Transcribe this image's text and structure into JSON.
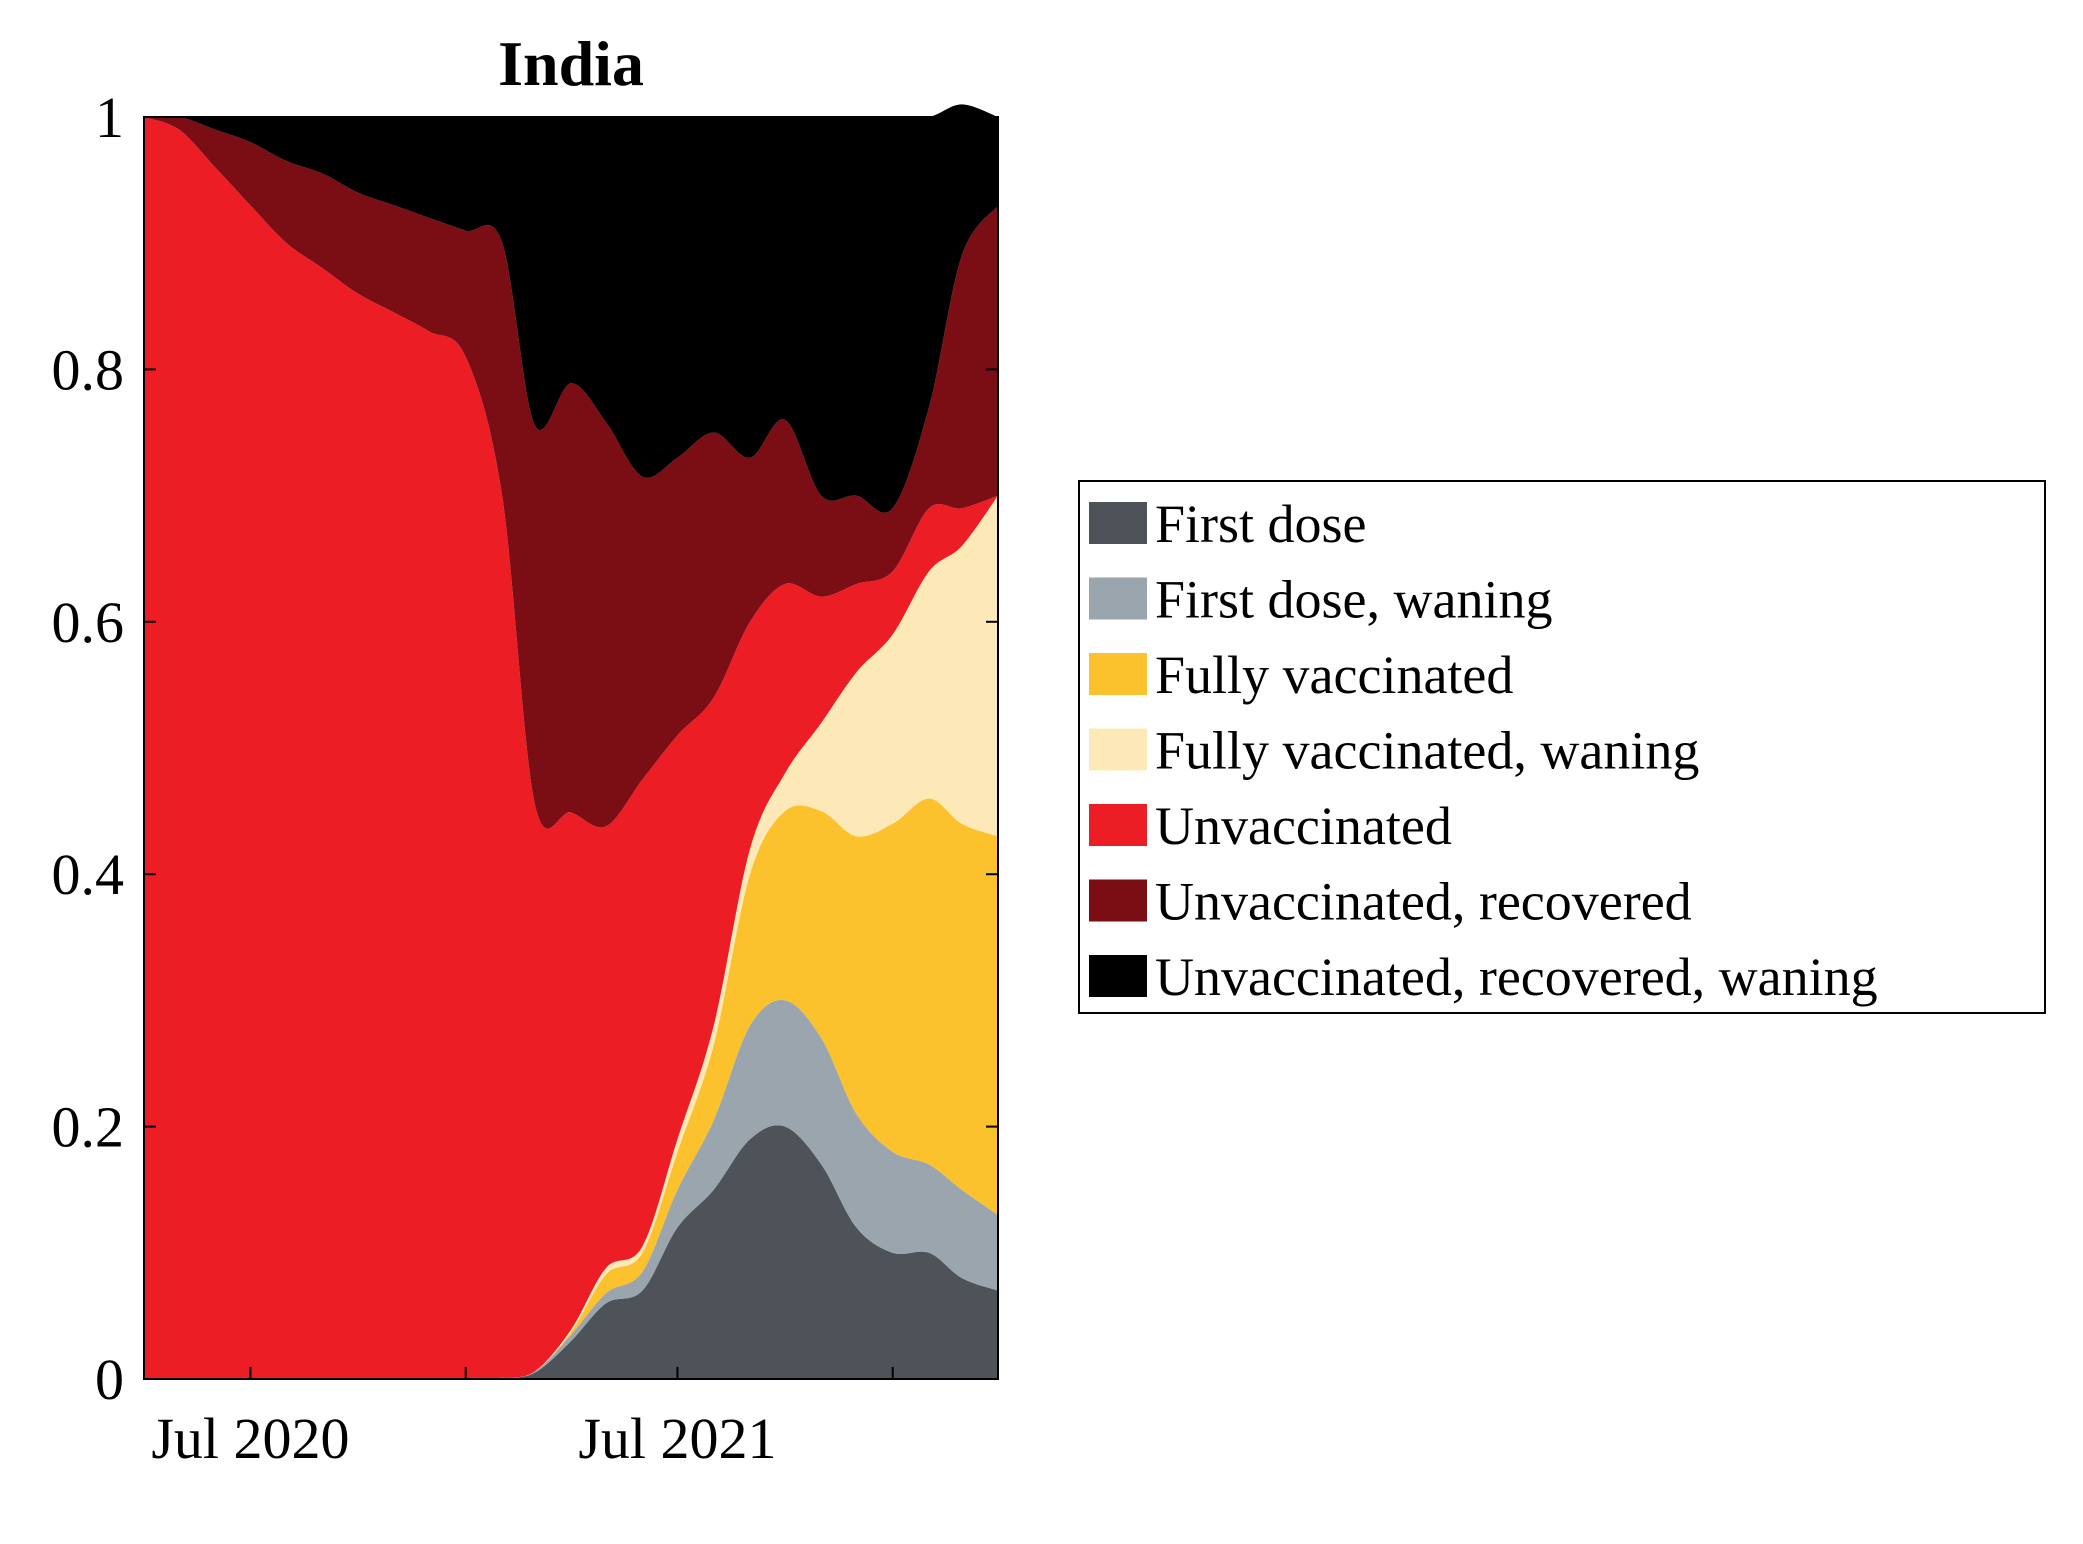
{
  "chart_data": {
    "type": "area",
    "stacked": true,
    "normalized": true,
    "title": "India",
    "xlabel": "",
    "ylabel": "",
    "xlim": [
      "2020-04-01",
      "2022-04-01"
    ],
    "ylim": [
      0,
      1
    ],
    "y_ticks": [
      0,
      0.2,
      0.4,
      0.6,
      0.8,
      1
    ],
    "y_tick_labels": [
      "0",
      "0.2",
      "0.4",
      "0.6",
      "0.8",
      "1"
    ],
    "x_ticks": [
      "2020-07-01",
      "2021-07-01"
    ],
    "x_tick_labels": [
      "Jul 2020",
      "Jul 2021"
    ],
    "grid": false,
    "legend_position": "outside-right",
    "x": [
      "2020-04-01",
      "2020-05-01",
      "2020-06-01",
      "2020-07-01",
      "2020-08-01",
      "2020-09-01",
      "2020-10-01",
      "2020-11-01",
      "2020-12-01",
      "2021-01-01",
      "2021-02-01",
      "2021-03-01",
      "2021-04-01",
      "2021-05-01",
      "2021-06-01",
      "2021-07-01",
      "2021-08-01",
      "2021-09-01",
      "2021-10-01",
      "2021-11-01",
      "2021-12-01",
      "2022-01-01",
      "2022-02-01",
      "2022-03-01",
      "2022-04-01"
    ],
    "series": [
      {
        "name": "First dose",
        "color": "#4e535a",
        "values": [
          0,
          0,
          0,
          0,
          0,
          0,
          0,
          0,
          0,
          0,
          0.001,
          0.005,
          0.03,
          0.06,
          0.07,
          0.12,
          0.15,
          0.19,
          0.2,
          0.17,
          0.12,
          0.1,
          0.1,
          0.08,
          0.07
        ]
      },
      {
        "name": "First dose, waning",
        "color": "#9aa5ae",
        "values": [
          0,
          0,
          0,
          0,
          0,
          0,
          0,
          0,
          0,
          0,
          0,
          0.001,
          0.005,
          0.008,
          0.015,
          0.03,
          0.055,
          0.09,
          0.1,
          0.1,
          0.09,
          0.08,
          0.07,
          0.07,
          0.06
        ]
      },
      {
        "name": "Fully vaccinated",
        "color": "#fcc22d",
        "values": [
          0,
          0,
          0,
          0,
          0,
          0,
          0,
          0,
          0,
          0,
          0,
          0,
          0.002,
          0.015,
          0.015,
          0.03,
          0.06,
          0.12,
          0.15,
          0.18,
          0.22,
          0.26,
          0.29,
          0.29,
          0.3
        ]
      },
      {
        "name": "Fully vaccinated, waning",
        "color": "#fde8b7",
        "values": [
          0,
          0,
          0,
          0,
          0,
          0,
          0,
          0,
          0,
          0,
          0,
          0,
          0.002,
          0.005,
          0.005,
          0.01,
          0.015,
          0.02,
          0.03,
          0.07,
          0.13,
          0.15,
          0.18,
          0.22,
          0.27
        ]
      },
      {
        "name": "Unvaccinated",
        "color": "#ec1d24",
        "values": [
          1,
          0.99,
          0.96,
          0.93,
          0.9,
          0.88,
          0.86,
          0.845,
          0.83,
          0.81,
          0.7,
          0.45,
          0.41,
          0.35,
          0.37,
          0.32,
          0.26,
          0.18,
          0.15,
          0.1,
          0.07,
          0.05,
          0.05,
          0.03,
          0.0
        ]
      },
      {
        "name": "Unvaccinated, recovered",
        "color": "#7a0e14",
        "values": [
          0,
          0.01,
          0.03,
          0.05,
          0.065,
          0.075,
          0.08,
          0.085,
          0.09,
          0.1,
          0.2,
          0.3,
          0.34,
          0.32,
          0.24,
          0.22,
          0.21,
          0.13,
          0.13,
          0.08,
          0.07,
          0.05,
          0.08,
          0.2,
          0.23
        ]
      },
      {
        "name": "Unvaccinated, recovered, waning",
        "color": "#000000",
        "values": [
          0,
          0,
          0.01,
          0.02,
          0.035,
          0.045,
          0.06,
          0.07,
          0.08,
          0.09,
          0.099,
          0.244,
          0.211,
          0.242,
          0.285,
          0.27,
          0.25,
          0.27,
          0.24,
          0.3,
          0.3,
          0.31,
          0.23,
          0.12,
          0.07
        ]
      }
    ]
  }
}
